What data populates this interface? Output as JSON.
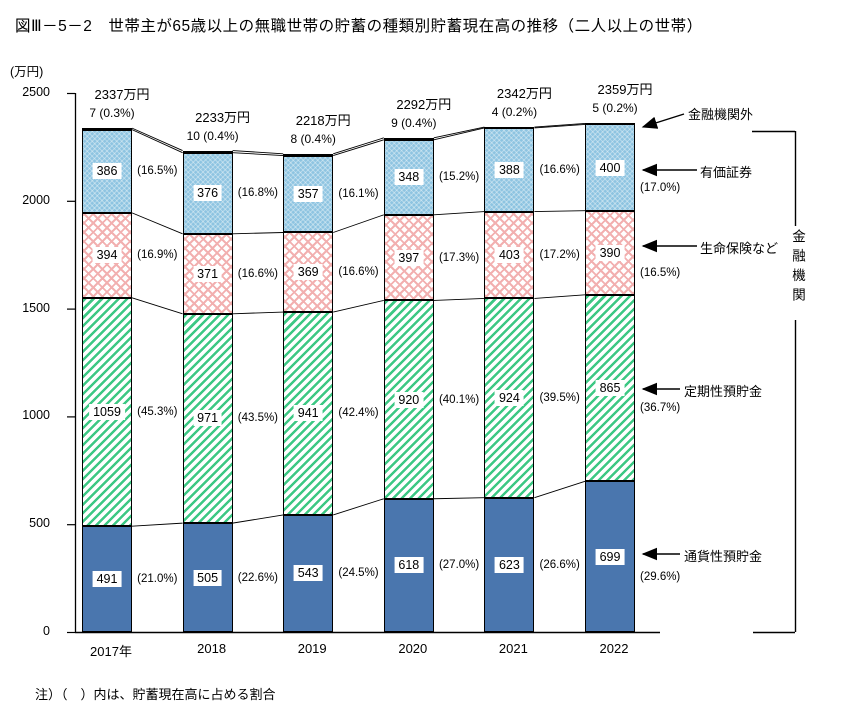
{
  "title": "図Ⅲ－5－2　世帯主が65歳以上の無職世帯の貯蓄の種類別貯蓄現在高の推移（二人以上の世帯）",
  "note": "注）（　）内は、貯蓄現在高に占める割合",
  "y_axis_unit": "(万円)",
  "unit_suffix": "万円",
  "colors": {
    "currency_deposits": "#4a76ae",
    "time_deposits": "#3dc884",
    "life_insurance": "#f2b0b0",
    "securities": "#8ec4e1",
    "outside_institutions": "#000000"
  },
  "chart_data": {
    "type": "bar",
    "stacked": true,
    "categories": [
      "2017年",
      "2018",
      "2019",
      "2020",
      "2021",
      "2022"
    ],
    "totals": [
      2337,
      2233,
      2218,
      2292,
      2342,
      2359
    ],
    "ylim": [
      0,
      2500
    ],
    "y_ticks": [
      0,
      500,
      1000,
      1500,
      2000,
      2500
    ],
    "grid": false,
    "legend_position": "right-arrows",
    "series": [
      {
        "name": "通貨性預貯金",
        "key": "currency_deposits",
        "values": [
          491,
          505,
          543,
          618,
          623,
          699
        ],
        "pcts": [
          "(21.0%)",
          "(22.6%)",
          "(24.5%)",
          "(27.0%)",
          "(26.6%)",
          "(29.6%)"
        ]
      },
      {
        "name": "定期性預貯金",
        "key": "time_deposits",
        "values": [
          1059,
          971,
          941,
          920,
          924,
          865
        ],
        "pcts": [
          "(45.3%)",
          "(43.5%)",
          "(42.4%)",
          "(40.1%)",
          "(39.5%)",
          "(36.7%)"
        ]
      },
      {
        "name": "生命保険など",
        "key": "life_insurance",
        "values": [
          394,
          371,
          369,
          397,
          403,
          390
        ],
        "pcts": [
          "(16.9%)",
          "(16.6%)",
          "(16.6%)",
          "(17.3%)",
          "(17.2%)",
          "(16.5%)"
        ]
      },
      {
        "name": "有価証券",
        "key": "securities",
        "values": [
          386,
          376,
          357,
          348,
          388,
          400
        ],
        "pcts": [
          "(16.5%)",
          "(16.8%)",
          "(16.1%)",
          "(15.2%)",
          "(16.6%)",
          "(17.0%)"
        ]
      },
      {
        "name": "金融機関外",
        "key": "outside_institutions",
        "values": [
          7,
          10,
          8,
          9,
          4,
          5
        ],
        "pcts": [
          "(0.3%)",
          "(0.4%)",
          "(0.4%)",
          "(0.4%)",
          "(0.2%)",
          "(0.2%)"
        ]
      }
    ]
  },
  "right_annotations": {
    "bracket_label": "金融機関"
  }
}
